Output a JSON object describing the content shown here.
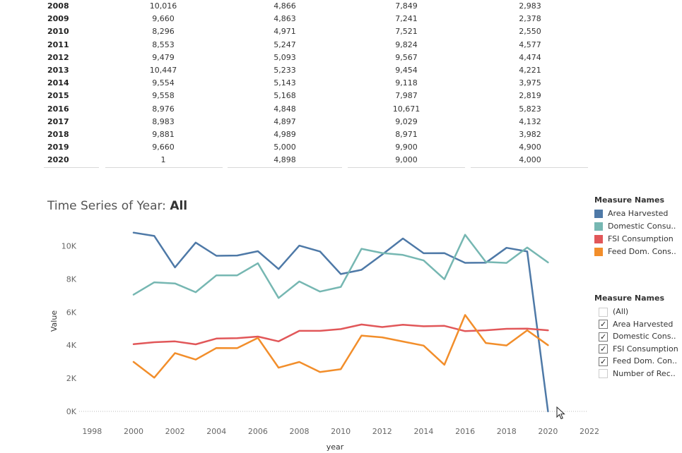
{
  "table": {
    "rows": [
      {
        "year": "2008",
        "cols": [
          "10,016",
          "4,866",
          "7,849",
          "2,983"
        ]
      },
      {
        "year": "2009",
        "cols": [
          "9,660",
          "4,863",
          "7,241",
          "2,378"
        ]
      },
      {
        "year": "2010",
        "cols": [
          "8,296",
          "4,971",
          "7,521",
          "2,550"
        ]
      },
      {
        "year": "2011",
        "cols": [
          "8,553",
          "5,247",
          "9,824",
          "4,577"
        ]
      },
      {
        "year": "2012",
        "cols": [
          "9,479",
          "5,093",
          "9,567",
          "4,474"
        ]
      },
      {
        "year": "2013",
        "cols": [
          "10,447",
          "5,233",
          "9,454",
          "4,221"
        ]
      },
      {
        "year": "2014",
        "cols": [
          "9,554",
          "5,143",
          "9,118",
          "3,975"
        ]
      },
      {
        "year": "2015",
        "cols": [
          "9,558",
          "5,168",
          "7,987",
          "2,819"
        ]
      },
      {
        "year": "2016",
        "cols": [
          "8,976",
          "4,848",
          "10,671",
          "5,823"
        ]
      },
      {
        "year": "2017",
        "cols": [
          "8,983",
          "4,897",
          "9,029",
          "4,132"
        ]
      },
      {
        "year": "2018",
        "cols": [
          "9,881",
          "4,989",
          "8,971",
          "3,982"
        ]
      },
      {
        "year": "2019",
        "cols": [
          "9,660",
          "5,000",
          "9,900",
          "4,900"
        ]
      },
      {
        "year": "2020",
        "cols": [
          "1",
          "4,898",
          "9,000",
          "4,000"
        ]
      }
    ]
  },
  "title_prefix": "Time Series of Year:",
  "title_value": "All",
  "legend": {
    "title": "Measure Names",
    "items": [
      {
        "label": "Area Harvested",
        "color": "#4e79a7"
      },
      {
        "label": "Domestic Consu..",
        "color": "#76b7b2"
      },
      {
        "label": "FSI Consumption",
        "color": "#e15759"
      },
      {
        "label": "Feed Dom. Cons..",
        "color": "#f28e2b"
      }
    ]
  },
  "filter": {
    "title": "Measure Names",
    "items": [
      {
        "label": "(All)",
        "checked": false
      },
      {
        "label": "Area Harvested",
        "checked": true
      },
      {
        "label": "Domestic Cons..",
        "checked": true
      },
      {
        "label": "FSI Consumption",
        "checked": true
      },
      {
        "label": "Feed Dom. Con..",
        "checked": true
      },
      {
        "label": "Number of Rec..",
        "checked": false
      }
    ]
  },
  "chart_data": {
    "type": "line",
    "title": "Time Series of Year: All",
    "xlabel": "year",
    "ylabel": "Value",
    "xlim": [
      1997,
      2022
    ],
    "ylim": [
      0,
      11000
    ],
    "x_ticks": [
      1998,
      2000,
      2002,
      2004,
      2006,
      2008,
      2010,
      2012,
      2014,
      2016,
      2018,
      2020,
      2022
    ],
    "y_ticks": [
      0,
      2000,
      4000,
      6000,
      8000,
      10000
    ],
    "y_tick_labels": [
      "0K",
      "2K",
      "4K",
      "6K",
      "8K",
      "10K"
    ],
    "x": [
      2000,
      2001,
      2002,
      2003,
      2004,
      2005,
      2006,
      2007,
      2008,
      2009,
      2010,
      2011,
      2012,
      2013,
      2014,
      2015,
      2016,
      2017,
      2018,
      2019,
      2020
    ],
    "series": [
      {
        "name": "Area Harvested",
        "color": "#4e79a7",
        "values": [
          10800,
          10600,
          8700,
          10200,
          9400,
          9420,
          9680,
          8600,
          10016,
          9660,
          8296,
          8553,
          9479,
          10447,
          9554,
          9558,
          8976,
          8983,
          9881,
          9660,
          1
        ]
      },
      {
        "name": "Domestic Consu..",
        "color": "#76b7b2",
        "values": [
          7050,
          7800,
          7730,
          7200,
          8220,
          8220,
          8950,
          6850,
          7849,
          7241,
          7521,
          9824,
          9567,
          9454,
          9118,
          7987,
          10671,
          9029,
          8971,
          9900,
          9000
        ]
      },
      {
        "name": "FSI Consumption",
        "color": "#e15759",
        "values": [
          4060,
          4180,
          4230,
          4050,
          4400,
          4420,
          4520,
          4230,
          4866,
          4863,
          4971,
          5247,
          5093,
          5233,
          5143,
          5168,
          4848,
          4897,
          4989,
          5000,
          4898
        ]
      },
      {
        "name": "Feed Dom. Cons..",
        "color": "#f28e2b",
        "values": [
          2990,
          2040,
          3520,
          3130,
          3830,
          3820,
          4440,
          2640,
          2983,
          2378,
          2550,
          4577,
          4474,
          4221,
          3975,
          2819,
          5823,
          4132,
          3982,
          4900,
          4000
        ]
      }
    ]
  }
}
